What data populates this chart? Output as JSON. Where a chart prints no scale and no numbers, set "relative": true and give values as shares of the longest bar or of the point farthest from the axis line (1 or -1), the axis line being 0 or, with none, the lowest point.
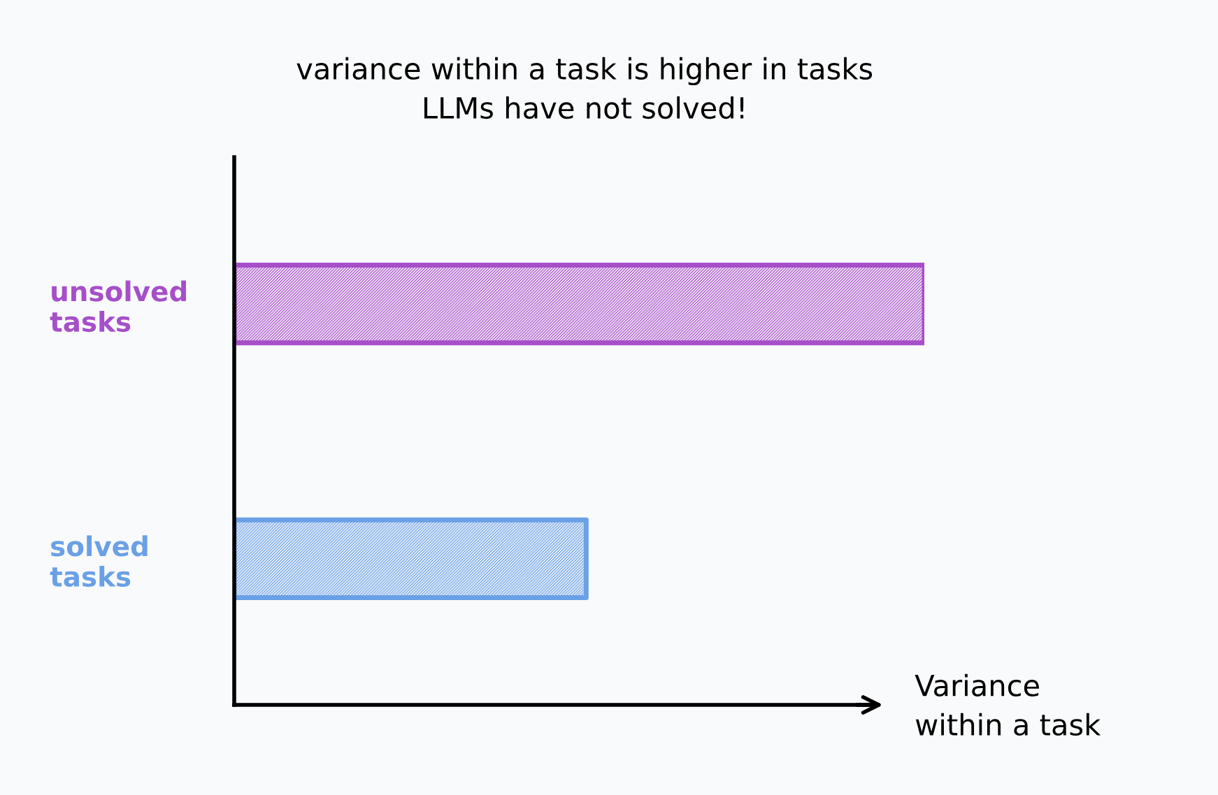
{
  "chart_data": {
    "type": "bar",
    "orientation": "horizontal",
    "relative": true,
    "title": "variance within a task is higher in tasks\nLLMs have not solved!",
    "xlabel": "Variance\nwithin a task",
    "categories": [
      "unsolved\ntasks",
      "solved\ntasks"
    ],
    "values": [
      1,
      0.51
    ],
    "colors": [
      "#a64fc9",
      "#6aa0e6"
    ],
    "grid": false,
    "legend": false
  }
}
